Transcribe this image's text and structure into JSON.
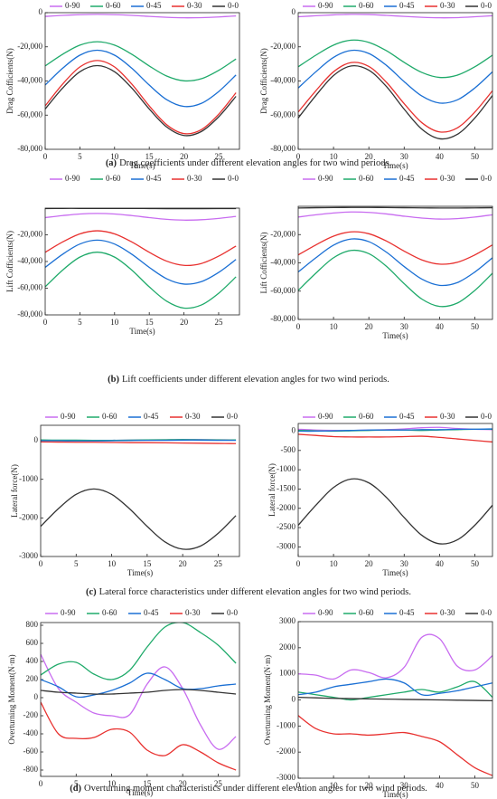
{
  "chart_data": [
    {
      "type": "line",
      "ylabel": "Drag Cofficients(N)",
      "xlabel": "Time(s)",
      "xlim": [
        0,
        28
      ],
      "xticks": [
        0,
        5,
        10,
        15,
        20,
        25
      ],
      "ylim": [
        -80000,
        0
      ],
      "yticks": [
        {
          "value": 0,
          "label": "0"
        },
        {
          "value": -20000,
          "label": "-20,000"
        },
        {
          "value": -40000,
          "label": "-40,000"
        },
        {
          "value": -60000,
          "label": "-60,000"
        },
        {
          "value": -80000,
          "label": "-80,000"
        }
      ],
      "x": [
        0,
        2.5,
        5,
        7.5,
        10,
        12.5,
        15,
        17.5,
        20,
        22.5,
        25,
        27.5
      ],
      "series": [
        {
          "name": "0-90",
          "color": "#c86cf0",
          "values": [
            -2200,
            -1600,
            -1200,
            -1000,
            -1200,
            -1600,
            -2200,
            -2700,
            -3000,
            -2900,
            -2500,
            -1900
          ]
        },
        {
          "name": "0-60",
          "color": "#1faa6a",
          "values": [
            -31200,
            -24400,
            -19000,
            -17000,
            -19000,
            -24400,
            -31200,
            -37100,
            -39900,
            -38700,
            -33800,
            -27100
          ]
        },
        {
          "name": "0-45",
          "color": "#1a6fd4",
          "values": [
            -42400,
            -32600,
            -24900,
            -22000,
            -24900,
            -32600,
            -42400,
            -50900,
            -54900,
            -53100,
            -46200,
            -36500
          ]
        },
        {
          "name": "0-30",
          "color": "#e8312f",
          "values": [
            -54600,
            -41900,
            -31800,
            -28000,
            -31800,
            -41900,
            -54600,
            -65600,
            -70800,
            -68500,
            -59500,
            -46900
          ]
        },
        {
          "name": "0-0",
          "color": "#333333",
          "values": [
            -56400,
            -44200,
            -34600,
            -31000,
            -34600,
            -44200,
            -56400,
            -66900,
            -71900,
            -69600,
            -61000,
            -49000
          ]
        }
      ]
    },
    {
      "type": "line",
      "ylabel": "Drag Cofficients(N)",
      "xlabel": "Time(s)",
      "xlim": [
        0,
        55
      ],
      "xticks": [
        0,
        10,
        20,
        30,
        40,
        50
      ],
      "ylim": [
        -80000,
        0
      ],
      "yticks": [
        {
          "value": 0,
          "label": "0"
        },
        {
          "value": -20000,
          "label": "-20,000"
        },
        {
          "value": -40000,
          "label": "-40,000"
        },
        {
          "value": -60000,
          "label": "-60,000"
        },
        {
          "value": -80000,
          "label": "-80,000"
        }
      ],
      "x": [
        0,
        5,
        10,
        15,
        20,
        25,
        30,
        35,
        40,
        45,
        50,
        55
      ],
      "series": [
        {
          "name": "0-90",
          "color": "#c86cf0",
          "values": [
            -2400,
            -1800,
            -1300,
            -1000,
            -1100,
            -1600,
            -2200,
            -2700,
            -3000,
            -2900,
            -2400,
            -1800
          ]
        },
        {
          "name": "0-60",
          "color": "#1faa6a",
          "values": [
            -31700,
            -24900,
            -19000,
            -16100,
            -17400,
            -22300,
            -29100,
            -35000,
            -37900,
            -36600,
            -31700,
            -24900
          ]
        },
        {
          "name": "0-45",
          "color": "#1a6fd4",
          "values": [
            -44100,
            -34600,
            -26200,
            -22100,
            -23900,
            -30900,
            -40400,
            -48800,
            -52900,
            -51100,
            -44100,
            -34600
          ]
        },
        {
          "name": "0-30",
          "color": "#e8312f",
          "values": [
            -58200,
            -45700,
            -34600,
            -29200,
            -31500,
            -40800,
            -53300,
            -64400,
            -69800,
            -67500,
            -58200,
            -45700
          ]
        },
        {
          "name": "0-0",
          "color": "#333333",
          "values": [
            -61700,
            -48500,
            -36800,
            -31200,
            -33700,
            -43300,
            -56500,
            -68200,
            -73800,
            -71300,
            -61700,
            -48500
          ]
        }
      ]
    },
    {
      "type": "line",
      "ylabel": "Lift Cofficients(N)",
      "xlabel": "Time(s)",
      "xlim": [
        0,
        28
      ],
      "xticks": [
        0,
        5,
        10,
        15,
        20,
        25
      ],
      "ylim": [
        -80000,
        0
      ],
      "yticks": [
        {
          "value": -20000,
          "label": "-20,000"
        },
        {
          "value": -40000,
          "label": "-40,000"
        },
        {
          "value": -60000,
          "label": "-60,000"
        },
        {
          "value": -80000,
          "label": "-80,000"
        }
      ],
      "x": [
        0,
        2.5,
        5,
        7.5,
        10,
        12.5,
        15,
        17.5,
        20,
        22.5,
        25,
        27.5
      ],
      "series": [
        {
          "name": "0-90",
          "color": "#c86cf0",
          "values": [
            -7100,
            -5600,
            -4400,
            -4000,
            -4400,
            -5600,
            -7100,
            -8400,
            -9000,
            -8700,
            -7700,
            -6200
          ]
        },
        {
          "name": "0-60",
          "color": "#1faa6a",
          "values": [
            -59000,
            -46500,
            -36700,
            -33000,
            -36700,
            -46500,
            -59000,
            -69700,
            -74900,
            -72600,
            -63800,
            -51500
          ]
        },
        {
          "name": "0-45",
          "color": "#1a6fd4",
          "values": [
            -44400,
            -34600,
            -26900,
            -24000,
            -26900,
            -34600,
            -44400,
            -52900,
            -56900,
            -55100,
            -48200,
            -38500
          ]
        },
        {
          "name": "0-30",
          "color": "#e8312f",
          "values": [
            -33100,
            -25400,
            -19300,
            -17000,
            -19300,
            -25400,
            -33100,
            -39700,
            -42900,
            -41500,
            -36000,
            -28400
          ]
        },
        {
          "name": "0-0",
          "color": "#333333",
          "values": [
            -300,
            -200,
            -200,
            -200,
            -200,
            -200,
            -300,
            -400,
            -400,
            -400,
            -300,
            -300
          ]
        }
      ]
    },
    {
      "type": "line",
      "ylabel": "Lift Cofficients(N)",
      "xlabel": "Time(s)",
      "xlim": [
        0,
        55
      ],
      "xticks": [
        0,
        10,
        20,
        30,
        40,
        50
      ],
      "ylim": [
        -80000,
        0
      ],
      "yticks": [
        {
          "value": -20000,
          "label": "-20,000"
        },
        {
          "value": -40000,
          "label": "-40,000"
        },
        {
          "value": -60000,
          "label": "-60,000"
        },
        {
          "value": -80000,
          "label": "-80,000"
        }
      ],
      "x": [
        0,
        5,
        10,
        15,
        20,
        25,
        30,
        35,
        40,
        45,
        50,
        55
      ],
      "series": [
        {
          "name": "0-90",
          "color": "#c86cf0",
          "values": [
            -7600,
            -6000,
            -4700,
            -4000,
            -4300,
            -5400,
            -7000,
            -8300,
            -9000,
            -8700,
            -7600,
            -6000
          ]
        },
        {
          "name": "0-60",
          "color": "#1faa6a",
          "values": [
            -59500,
            -47300,
            -36400,
            -31200,
            -33500,
            -42500,
            -54700,
            -65600,
            -70800,
            -68500,
            -59500,
            -47300
          ]
        },
        {
          "name": "0-45",
          "color": "#1a6fd4",
          "values": [
            -46500,
            -36400,
            -27500,
            -23100,
            -25000,
            -32500,
            -42600,
            -51500,
            -55900,
            -54000,
            -46500,
            -36400
          ]
        },
        {
          "name": "0-30",
          "color": "#e8312f",
          "values": [
            -34400,
            -27300,
            -21100,
            -18100,
            -19400,
            -24600,
            -31700,
            -37900,
            -40900,
            -39600,
            -34400,
            -27300
          ]
        },
        {
          "name": "0-0",
          "color": "#333333",
          "values": [
            -1200,
            -1000,
            -900,
            -800,
            -800,
            -900,
            -1000,
            -1100,
            -1200,
            -1200,
            -1100,
            -1000
          ]
        }
      ]
    },
    {
      "type": "line",
      "ylabel": "Lateral force(N)",
      "xlabel": "Time(s)",
      "xlim": [
        0,
        28
      ],
      "xticks": [
        0,
        5,
        10,
        15,
        20,
        25
      ],
      "ylim": [
        -3000,
        400
      ],
      "yticks": [
        0,
        -1000,
        -2000,
        -3000
      ],
      "x": [
        0,
        2.5,
        5,
        7.5,
        10,
        12.5,
        15,
        17.5,
        20,
        22.5,
        25,
        27.5
      ],
      "series": [
        {
          "name": "0-90",
          "color": "#c86cf0",
          "values": [
            10,
            10,
            5,
            5,
            10,
            15,
            20,
            25,
            30,
            30,
            25,
            20
          ]
        },
        {
          "name": "0-60",
          "color": "#1faa6a",
          "values": [
            20,
            15,
            15,
            10,
            10,
            15,
            20,
            25,
            30,
            25,
            20,
            20
          ]
        },
        {
          "name": "0-45",
          "color": "#1a6fd4",
          "values": [
            0,
            0,
            -5,
            -5,
            0,
            5,
            10,
            10,
            15,
            15,
            10,
            10
          ]
        },
        {
          "name": "0-30",
          "color": "#e8312f",
          "values": [
            -30,
            -35,
            -40,
            -40,
            -45,
            -50,
            -50,
            -55,
            -60,
            -65,
            -70,
            -75
          ]
        },
        {
          "name": "0-0",
          "color": "#333333",
          "values": [
            -2220,
            -1760,
            -1390,
            -1250,
            -1390,
            -1760,
            -2220,
            -2620,
            -2810,
            -2730,
            -2400,
            -1940
          ]
        }
      ]
    },
    {
      "type": "line",
      "ylabel": "Lateral force(N)",
      "xlabel": "Time(s)",
      "xlim": [
        0,
        55
      ],
      "xticks": [
        0,
        10,
        20,
        30,
        40,
        50
      ],
      "ylim": [
        -3250,
        200
      ],
      "yticks": [
        0,
        -500,
        -1000,
        -1500,
        -2000,
        -2500,
        -3000
      ],
      "x": [
        0,
        5,
        10,
        15,
        20,
        25,
        30,
        35,
        40,
        45,
        50,
        55
      ],
      "series": [
        {
          "name": "0-90",
          "color": "#c86cf0",
          "values": [
            50,
            30,
            20,
            20,
            30,
            40,
            60,
            90,
            100,
            70,
            50,
            40
          ]
        },
        {
          "name": "0-60",
          "color": "#1faa6a",
          "values": [
            20,
            10,
            0,
            10,
            20,
            30,
            30,
            20,
            30,
            40,
            50,
            50
          ]
        },
        {
          "name": "0-45",
          "color": "#1a6fd4",
          "values": [
            0,
            0,
            10,
            20,
            30,
            30,
            30,
            40,
            40,
            50,
            50,
            60
          ]
        },
        {
          "name": "0-30",
          "color": "#e8312f",
          "values": [
            -80,
            -110,
            -140,
            -150,
            -150,
            -150,
            -140,
            -130,
            -160,
            -200,
            -240,
            -280
          ]
        },
        {
          "name": "0-0",
          "color": "#333333",
          "values": [
            -2440,
            -1920,
            -1460,
            -1240,
            -1340,
            -1720,
            -2240,
            -2700,
            -2920,
            -2820,
            -2440,
            -1920
          ]
        }
      ]
    },
    {
      "type": "line",
      "ylabel": "Overturning Moment(N·m)",
      "xlabel": "Time(s)",
      "xlim": [
        0,
        28
      ],
      "xticks": [
        0,
        5,
        10,
        15,
        20,
        25
      ],
      "ylim": [
        -870,
        830
      ],
      "yticks": [
        800,
        600,
        400,
        200,
        0,
        -200,
        -400,
        -600,
        -800
      ],
      "x": [
        0,
        2.5,
        5,
        7.5,
        10,
        12.5,
        15,
        17.5,
        20,
        22.5,
        25,
        27.5
      ],
      "series": [
        {
          "name": "0-90",
          "color": "#c86cf0",
          "values": [
            480,
            100,
            -50,
            -170,
            -200,
            -190,
            150,
            340,
            100,
            -300,
            -570,
            -430
          ]
        },
        {
          "name": "0-60",
          "color": "#1faa6a",
          "values": [
            250,
            370,
            390,
            260,
            200,
            300,
            560,
            780,
            830,
            720,
            580,
            380
          ]
        },
        {
          "name": "0-45",
          "color": "#1a6fd4",
          "values": [
            200,
            120,
            10,
            30,
            80,
            160,
            270,
            200,
            100,
            100,
            130,
            150
          ]
        },
        {
          "name": "0-30",
          "color": "#e8312f",
          "values": [
            -50,
            -400,
            -450,
            -440,
            -350,
            -380,
            -580,
            -640,
            -520,
            -600,
            -720,
            -800
          ]
        },
        {
          "name": "0-0",
          "color": "#333333",
          "values": [
            80,
            60,
            50,
            40,
            40,
            50,
            60,
            80,
            90,
            80,
            60,
            40
          ]
        }
      ]
    },
    {
      "type": "line",
      "ylabel": "Overturning Moment(N·m)",
      "xlabel": "Time(s)",
      "xlim": [
        0,
        55
      ],
      "xticks": [
        0,
        10,
        20,
        30,
        40,
        50
      ],
      "ylim": [
        -3000,
        3000
      ],
      "yticks": [
        3000,
        2000,
        1000,
        0,
        -1000,
        -2000,
        -3000
      ],
      "x": [
        0,
        5,
        10,
        15,
        20,
        25,
        30,
        35,
        40,
        45,
        50,
        55
      ],
      "series": [
        {
          "name": "0-90",
          "color": "#c86cf0",
          "values": [
            1000,
            950,
            800,
            1150,
            1050,
            850,
            1250,
            2400,
            2350,
            1300,
            1150,
            1700
          ]
        },
        {
          "name": "0-60",
          "color": "#1faa6a",
          "values": [
            300,
            200,
            100,
            0,
            100,
            200,
            300,
            400,
            300,
            500,
            700,
            100
          ]
        },
        {
          "name": "0-45",
          "color": "#1a6fd4",
          "values": [
            200,
            300,
            500,
            600,
            700,
            800,
            650,
            200,
            250,
            350,
            500,
            650
          ]
        },
        {
          "name": "0-30",
          "color": "#e8312f",
          "values": [
            -600,
            -1100,
            -1300,
            -1300,
            -1350,
            -1300,
            -1250,
            -1400,
            -1600,
            -2100,
            -2600,
            -2900
          ]
        },
        {
          "name": "0-0",
          "color": "#333333",
          "values": [
            100,
            80,
            60,
            50,
            40,
            30,
            20,
            10,
            0,
            -10,
            -20,
            -30
          ]
        }
      ]
    }
  ],
  "captions": [
    {
      "tag": "(a)",
      "text": "Drag coefficients under different elevation angles for two wind periods."
    },
    {
      "tag": "(b)",
      "text": "Lift coefficients under different elevation angles for two wind periods."
    },
    {
      "tag": "(c)",
      "text": "Lateral force characteristics under different elevation angles for two wind periods."
    },
    {
      "tag": "(d)",
      "text": "Overturning moment characteristics under different elevation angles for two wind periods."
    }
  ]
}
